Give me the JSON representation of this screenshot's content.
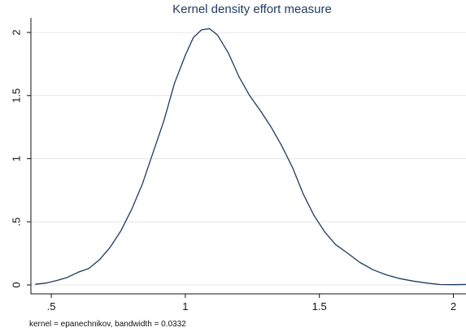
{
  "chart_data": {
    "type": "line",
    "title": "Kernel density effort measure",
    "xlabel": "",
    "ylabel": "",
    "note": "kernel = epanechnikov, bandwidth = 0.0332",
    "xlim": [
      0.43,
      2.05
    ],
    "ylim": [
      0,
      2.05
    ],
    "grid": true,
    "legend": "none",
    "x_ticks": [
      0.5,
      1,
      1.5,
      2
    ],
    "x_tick_labels": [
      ".5",
      "1",
      "1.5",
      "2"
    ],
    "y_ticks": [
      0,
      0.5,
      1,
      1.5,
      2
    ],
    "y_tick_labels": [
      "0",
      ".5",
      "1",
      "1.5",
      "2"
    ],
    "series": [
      {
        "color": "#1e3a5f",
        "x": [
          0.44,
          0.48,
          0.52,
          0.56,
          0.6,
          0.64,
          0.68,
          0.72,
          0.76,
          0.8,
          0.84,
          0.88,
          0.92,
          0.96,
          1.0,
          1.03,
          1.06,
          1.09,
          1.12,
          1.16,
          1.2,
          1.24,
          1.28,
          1.32,
          1.36,
          1.4,
          1.44,
          1.48,
          1.52,
          1.56,
          1.6,
          1.65,
          1.7,
          1.75,
          1.8,
          1.85,
          1.9,
          1.95,
          2.0,
          2.05
        ],
        "y": [
          0.005,
          0.015,
          0.035,
          0.06,
          0.1,
          0.13,
          0.2,
          0.3,
          0.43,
          0.6,
          0.8,
          1.05,
          1.3,
          1.6,
          1.82,
          1.96,
          2.02,
          2.03,
          1.98,
          1.84,
          1.65,
          1.5,
          1.38,
          1.25,
          1.1,
          0.93,
          0.72,
          0.55,
          0.42,
          0.32,
          0.26,
          0.18,
          0.12,
          0.08,
          0.05,
          0.03,
          0.015,
          0.003,
          0.002,
          0.004
        ]
      }
    ]
  }
}
